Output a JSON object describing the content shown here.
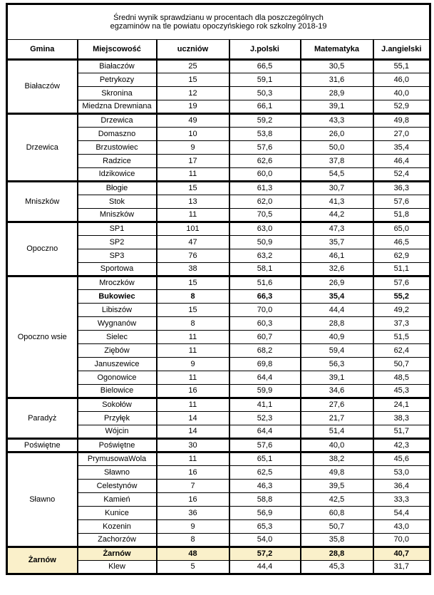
{
  "title": {
    "line1": "Średni wynik sprawdzianu w procentach dla poszczególnych",
    "line2": "egzaminów na tle powiatu opoczyńskiego rok szkolny 2018-19"
  },
  "colors": {
    "highlight_row_background": "#FAF0CA",
    "border": "#000000",
    "page_background": "#FFFFFF"
  },
  "table": {
    "headers": [
      "Gmina",
      "Miejscowość",
      "uczniów",
      "J.polski",
      "Matematyka",
      "J.angielski"
    ],
    "groups": [
      {
        "gmina": "Białaczów",
        "rows": [
          {
            "cells": [
              "Białaczów",
              "25",
              "66,5",
              "30,5",
              "55,1"
            ]
          },
          {
            "cells": [
              "Petrykozy",
              "15",
              "59,1",
              "31,6",
              "46,0"
            ]
          },
          {
            "cells": [
              "Skronina",
              "12",
              "50,3",
              "28,9",
              "40,0"
            ]
          },
          {
            "cells": [
              "Miedzna Drewniana",
              "19",
              "66,1",
              "39,1",
              "52,9"
            ]
          }
        ]
      },
      {
        "gmina": "Drzewica",
        "rows": [
          {
            "cells": [
              "Drzewica",
              "49",
              "59,2",
              "43,3",
              "49,8"
            ]
          },
          {
            "cells": [
              "Domaszno",
              "10",
              "53,8",
              "26,0",
              "27,0"
            ]
          },
          {
            "cells": [
              "Brzustowiec",
              "9",
              "57,6",
              "50,0",
              "35,4"
            ]
          },
          {
            "cells": [
              "Radzice",
              "17",
              "62,6",
              "37,8",
              "46,4"
            ]
          },
          {
            "cells": [
              "Idzikowice",
              "11",
              "60,0",
              "54,5",
              "52,4"
            ]
          }
        ]
      },
      {
        "gmina": "Mniszków",
        "rows": [
          {
            "cells": [
              "Błogie",
              "15",
              "61,3",
              "30,7",
              "36,3"
            ]
          },
          {
            "cells": [
              "Stok",
              "13",
              "62,0",
              "41,3",
              "57,6"
            ]
          },
          {
            "cells": [
              "Mniszków",
              "11",
              "70,5",
              "44,2",
              "51,8"
            ]
          }
        ]
      },
      {
        "gmina": "Opoczno",
        "rows": [
          {
            "cells": [
              "SP1",
              "101",
              "63,0",
              "47,3",
              "65,0"
            ]
          },
          {
            "cells": [
              "SP2",
              "47",
              "50,9",
              "35,7",
              "46,5"
            ]
          },
          {
            "cells": [
              "SP3",
              "76",
              "63,2",
              "46,1",
              "62,9"
            ]
          },
          {
            "cells": [
              "Sportowa",
              "38",
              "58,1",
              "32,6",
              "51,1"
            ]
          }
        ]
      },
      {
        "gmina": "Opoczno wsie",
        "rows": [
          {
            "cells": [
              "Mroczków",
              "15",
              "51,6",
              "26,9",
              "57,6"
            ]
          },
          {
            "cells": [
              "Bukowiec",
              "8",
              "66,3",
              "35,4",
              "55,2"
            ],
            "bold": true
          },
          {
            "cells": [
              "Libiszów",
              "15",
              "70,0",
              "44,4",
              "49,2"
            ]
          },
          {
            "cells": [
              "Wygnanów",
              "8",
              "60,3",
              "28,8",
              "37,3"
            ]
          },
          {
            "cells": [
              "Sielec",
              "11",
              "60,7",
              "40,9",
              "51,5"
            ]
          },
          {
            "cells": [
              "Ziębów",
              "11",
              "68,2",
              "59,4",
              "62,4"
            ]
          },
          {
            "cells": [
              "Januszewice",
              "9",
              "69,8",
              "56,3",
              "50,7"
            ]
          },
          {
            "cells": [
              "Ogonowice",
              "11",
              "64,4",
              "39,1",
              "48,5"
            ]
          },
          {
            "cells": [
              "Bielowice",
              "16",
              "59,9",
              "34,6",
              "45,3"
            ]
          }
        ]
      },
      {
        "gmina": "Paradyż",
        "rows": [
          {
            "cells": [
              "Sokołów",
              "11",
              "41,1",
              "27,6",
              "24,1"
            ]
          },
          {
            "cells": [
              "Przyłęk",
              "14",
              "52,3",
              "21,7",
              "38,3"
            ]
          },
          {
            "cells": [
              "Wójcin",
              "14",
              "64,4",
              "51,4",
              "51,7"
            ]
          }
        ]
      },
      {
        "gmina": "Poświętne",
        "rows": [
          {
            "cells": [
              "Poświętne",
              "30",
              "57,6",
              "40,0",
              "42,3"
            ]
          }
        ]
      },
      {
        "gmina": "Sławno",
        "rows": [
          {
            "cells": [
              "PrymusowaWola",
              "11",
              "65,1",
              "38,2",
              "45,6"
            ]
          },
          {
            "cells": [
              "Sławno",
              "16",
              "62,5",
              "49,8",
              "53,0"
            ]
          },
          {
            "cells": [
              "Celestynów",
              "7",
              "46,3",
              "39,5",
              "36,4"
            ]
          },
          {
            "cells": [
              "Kamień",
              "16",
              "58,8",
              "42,5",
              "33,3"
            ]
          },
          {
            "cells": [
              "Kunice",
              "36",
              "56,9",
              "60,8",
              "54,4"
            ]
          },
          {
            "cells": [
              "Kozenin",
              "9",
              "65,3",
              "50,7",
              "43,0"
            ]
          },
          {
            "cells": [
              "Zachorzów",
              "8",
              "54,0",
              "35,8",
              "70,0"
            ]
          }
        ]
      },
      {
        "gmina": "Żarnów",
        "gmina_highlight": true,
        "rows": [
          {
            "cells": [
              "Żarnów",
              "48",
              "57,2",
              "28,8",
              "40,7"
            ],
            "bold": true,
            "highlight": true
          },
          {
            "cells": [
              "Klew",
              "5",
              "44,4",
              "45,3",
              "31,7"
            ]
          }
        ]
      }
    ]
  }
}
